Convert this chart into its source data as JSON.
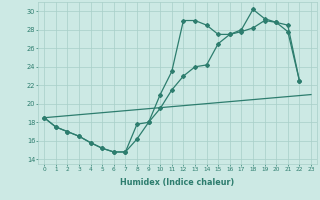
{
  "xlabel": "Humidex (Indice chaleur)",
  "x": [
    0,
    1,
    2,
    3,
    4,
    5,
    6,
    7,
    8,
    9,
    10,
    11,
    12,
    13,
    14,
    15,
    16,
    17,
    18,
    19,
    20,
    21,
    22,
    23
  ],
  "line1": [
    18.5,
    17.5,
    17.0,
    16.5,
    15.8,
    15.2,
    14.8,
    14.8,
    17.8,
    18.0,
    21.0,
    23.5,
    29.0,
    29.0,
    28.5,
    27.5,
    27.5,
    28.0,
    30.2,
    29.2,
    28.8,
    27.8,
    22.5,
    null
  ],
  "line2": [
    18.5,
    17.5,
    17.0,
    16.5,
    15.8,
    15.2,
    14.8,
    14.8,
    16.2,
    18.0,
    19.5,
    21.5,
    23.0,
    24.0,
    24.2,
    26.5,
    27.5,
    27.8,
    28.2,
    29.0,
    28.8,
    28.5,
    22.5,
    null
  ],
  "line3_x": [
    0,
    23
  ],
  "line3_y": [
    18.5,
    21.0
  ],
  "ylim": [
    13.5,
    31
  ],
  "yticks": [
    14,
    16,
    18,
    20,
    22,
    24,
    26,
    28,
    30
  ],
  "xlim": [
    -0.5,
    23.5
  ],
  "xticks": [
    0,
    1,
    2,
    3,
    4,
    5,
    6,
    7,
    8,
    9,
    10,
    11,
    12,
    13,
    14,
    15,
    16,
    17,
    18,
    19,
    20,
    21,
    22,
    23
  ],
  "line_color": "#2d7d6e",
  "bg_color": "#cce9e4",
  "grid_color": "#a8cfc8"
}
